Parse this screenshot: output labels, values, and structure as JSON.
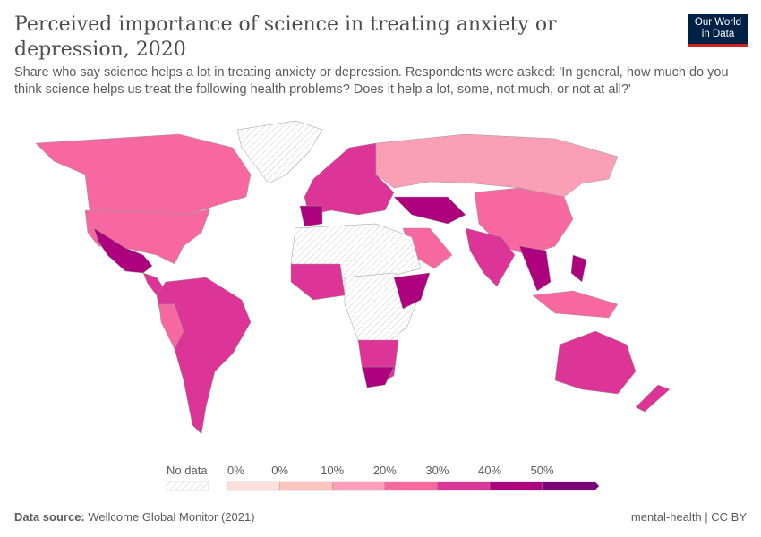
{
  "header": {
    "title": "Perceived importance of science in treating anxiety or depression, 2020",
    "subtitle": "Share who say science helps a lot in treating anxiety or depression. Respondents were asked: 'In general, how much do you think science helps us treat the following health problems? Does it help a lot, some, not much, or not at all?'",
    "logo": [
      "Our World",
      "in Data"
    ]
  },
  "legend": {
    "no_data_label": "No data",
    "ticks": [
      "0%",
      "0%",
      "10%",
      "20%",
      "30%",
      "40%",
      "50%"
    ],
    "colors": [
      "#fde0dd",
      "#fcc5c0",
      "#fa9fb5",
      "#f768a1",
      "#dd3497",
      "#ae017e",
      "#7a0177"
    ],
    "no_data_color": "#eeeeee"
  },
  "footer": {
    "source_label": "Data source:",
    "source": "Wellcome Global Monitor (2021)",
    "right": "mental-health | CC BY"
  }
}
